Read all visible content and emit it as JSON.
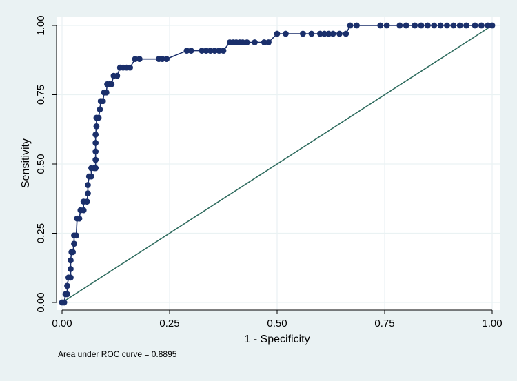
{
  "chart_data": {
    "type": "line",
    "xlabel": "1 - Specificity",
    "ylabel": "Sensitivity",
    "xlim": [
      0,
      1
    ],
    "ylim": [
      0,
      1
    ],
    "x_ticks": [
      "0.00",
      "0.25",
      "0.50",
      "0.75",
      "1.00"
    ],
    "y_ticks": [
      "0.00",
      "0.25",
      "0.50",
      "0.75",
      "1.00"
    ],
    "grid": true,
    "note": "Area under ROC curve = 0.8895",
    "colors": {
      "roc": "#1a2f6b",
      "reference": "#2e6b5e",
      "plot_background": "#ffffff",
      "outer_background": "#eaf2f3",
      "grid": "#eaf2f3"
    },
    "series": [
      {
        "kind": "roc",
        "points": [
          [
            0.0,
            0.0
          ],
          [
            0.005,
            0.0
          ],
          [
            0.008,
            0.03
          ],
          [
            0.012,
            0.03
          ],
          [
            0.012,
            0.06
          ],
          [
            0.015,
            0.09
          ],
          [
            0.02,
            0.09
          ],
          [
            0.02,
            0.121
          ],
          [
            0.02,
            0.152
          ],
          [
            0.022,
            0.182
          ],
          [
            0.025,
            0.182
          ],
          [
            0.028,
            0.212
          ],
          [
            0.028,
            0.242
          ],
          [
            0.033,
            0.242
          ],
          [
            0.035,
            0.303
          ],
          [
            0.04,
            0.303
          ],
          [
            0.043,
            0.333
          ],
          [
            0.05,
            0.333
          ],
          [
            0.05,
            0.364
          ],
          [
            0.058,
            0.364
          ],
          [
            0.06,
            0.394
          ],
          [
            0.06,
            0.424
          ],
          [
            0.063,
            0.455
          ],
          [
            0.068,
            0.455
          ],
          [
            0.068,
            0.485
          ],
          [
            0.075,
            0.485
          ],
          [
            0.078,
            0.485
          ],
          [
            0.078,
            0.515
          ],
          [
            0.078,
            0.545
          ],
          [
            0.078,
            0.576
          ],
          [
            0.078,
            0.606
          ],
          [
            0.08,
            0.636
          ],
          [
            0.08,
            0.667
          ],
          [
            0.085,
            0.667
          ],
          [
            0.088,
            0.697
          ],
          [
            0.09,
            0.727
          ],
          [
            0.095,
            0.727
          ],
          [
            0.098,
            0.758
          ],
          [
            0.103,
            0.758
          ],
          [
            0.105,
            0.788
          ],
          [
            0.11,
            0.788
          ],
          [
            0.115,
            0.788
          ],
          [
            0.12,
            0.818
          ],
          [
            0.128,
            0.818
          ],
          [
            0.135,
            0.848
          ],
          [
            0.142,
            0.848
          ],
          [
            0.15,
            0.848
          ],
          [
            0.158,
            0.848
          ],
          [
            0.17,
            0.879
          ],
          [
            0.18,
            0.879
          ],
          [
            0.225,
            0.879
          ],
          [
            0.233,
            0.879
          ],
          [
            0.243,
            0.879
          ],
          [
            0.29,
            0.909
          ],
          [
            0.3,
            0.909
          ],
          [
            0.325,
            0.909
          ],
          [
            0.335,
            0.909
          ],
          [
            0.345,
            0.909
          ],
          [
            0.355,
            0.909
          ],
          [
            0.365,
            0.909
          ],
          [
            0.375,
            0.909
          ],
          [
            0.39,
            0.939
          ],
          [
            0.398,
            0.939
          ],
          [
            0.405,
            0.939
          ],
          [
            0.413,
            0.939
          ],
          [
            0.42,
            0.939
          ],
          [
            0.43,
            0.939
          ],
          [
            0.448,
            0.939
          ],
          [
            0.47,
            0.939
          ],
          [
            0.48,
            0.939
          ],
          [
            0.5,
            0.97
          ],
          [
            0.52,
            0.97
          ],
          [
            0.56,
            0.97
          ],
          [
            0.58,
            0.97
          ],
          [
            0.6,
            0.97
          ],
          [
            0.61,
            0.97
          ],
          [
            0.62,
            0.97
          ],
          [
            0.63,
            0.97
          ],
          [
            0.645,
            0.97
          ],
          [
            0.66,
            0.97
          ],
          [
            0.67,
            1.0
          ],
          [
            0.685,
            1.0
          ],
          [
            0.74,
            1.0
          ],
          [
            0.755,
            1.0
          ],
          [
            0.785,
            1.0
          ],
          [
            0.8,
            1.0
          ],
          [
            0.82,
            1.0
          ],
          [
            0.835,
            1.0
          ],
          [
            0.85,
            1.0
          ],
          [
            0.865,
            1.0
          ],
          [
            0.88,
            1.0
          ],
          [
            0.895,
            1.0
          ],
          [
            0.91,
            1.0
          ],
          [
            0.925,
            1.0
          ],
          [
            0.94,
            1.0
          ],
          [
            0.96,
            1.0
          ],
          [
            0.975,
            1.0
          ],
          [
            0.99,
            1.0
          ],
          [
            1.0,
            1.0
          ]
        ]
      },
      {
        "kind": "reference",
        "points": [
          [
            0,
            0
          ],
          [
            1,
            1
          ]
        ]
      }
    ]
  }
}
